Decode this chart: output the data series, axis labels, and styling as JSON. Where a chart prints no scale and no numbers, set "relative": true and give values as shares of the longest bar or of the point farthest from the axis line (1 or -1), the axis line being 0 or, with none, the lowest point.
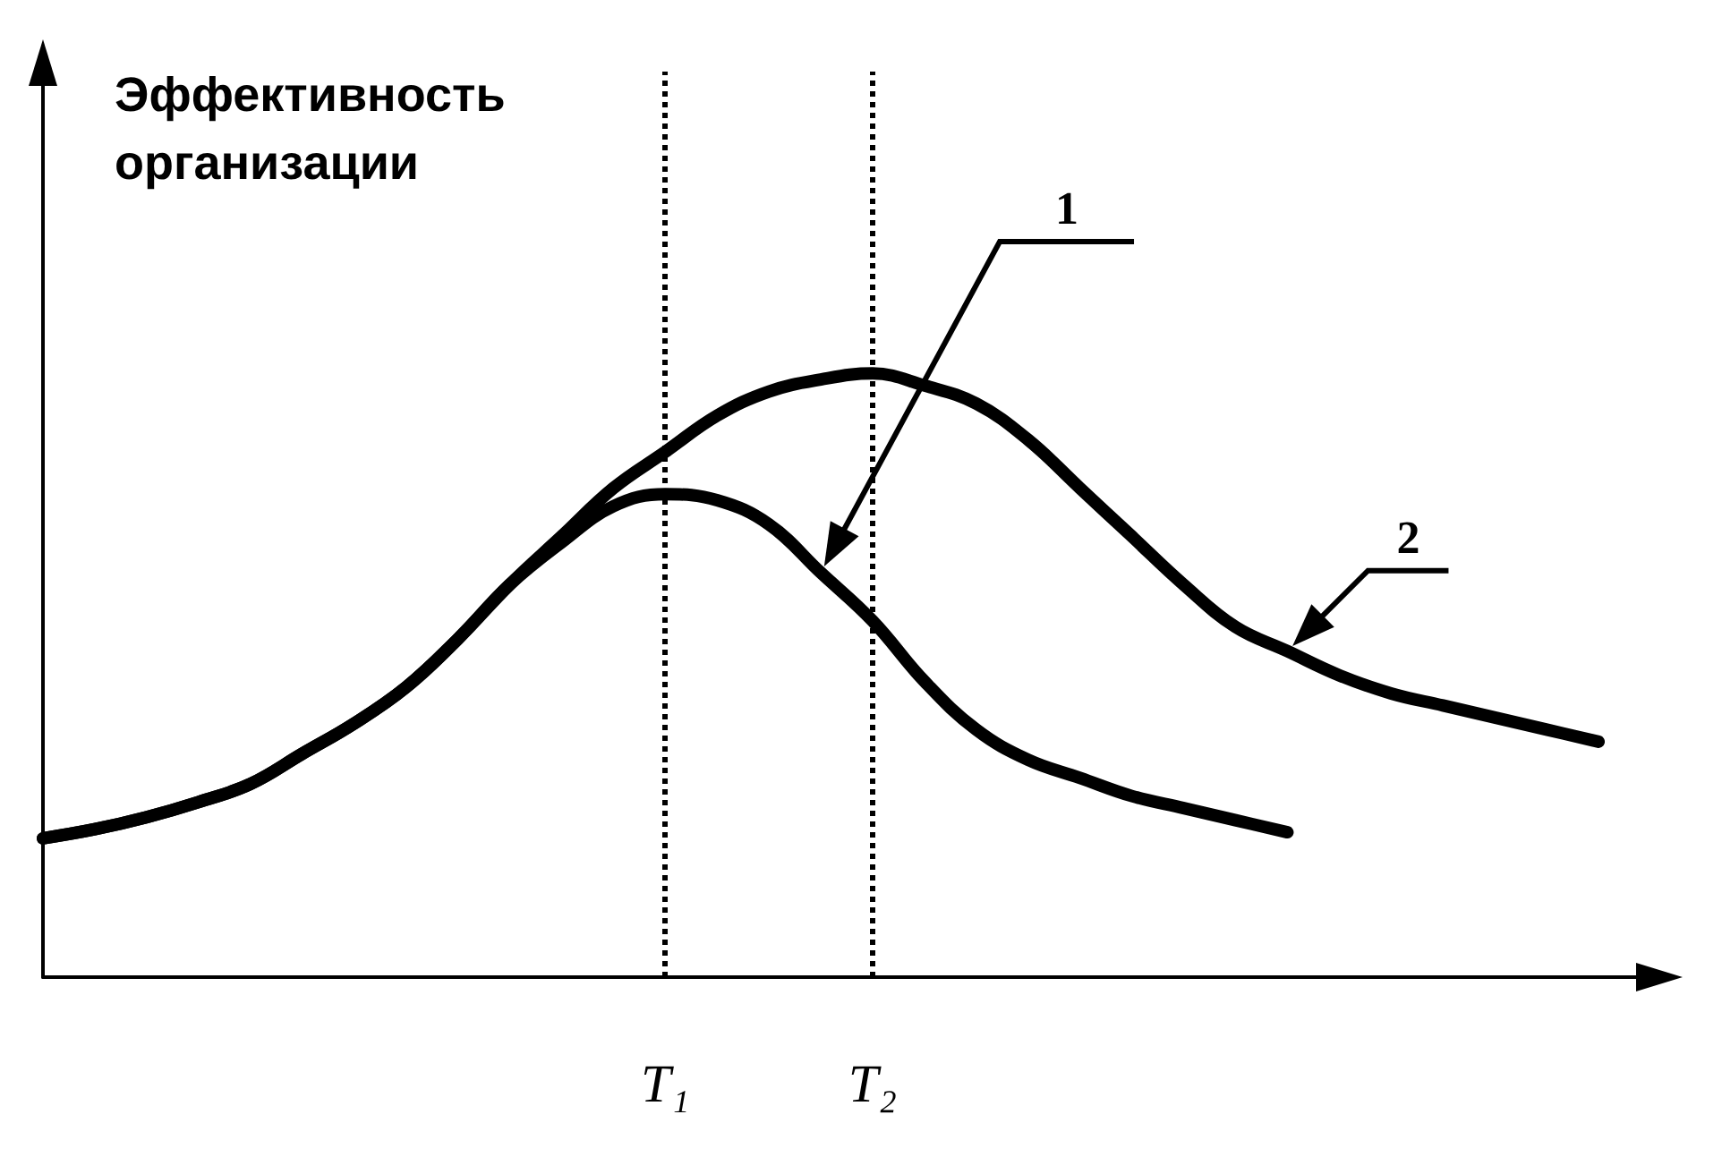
{
  "chart_data": {
    "type": "line",
    "ylabel": "Эффективность организации",
    "relative": true,
    "categories": [
      null,
      null,
      null,
      null,
      null,
      null,
      null,
      null,
      null,
      null,
      null,
      null,
      "T₁",
      null,
      null,
      null,
      "T₂",
      null,
      null,
      null,
      null,
      null,
      null,
      null,
      null,
      null,
      null,
      null,
      null,
      null,
      null,
      null
    ],
    "series": [
      {
        "name": "1",
        "color": "#000000",
        "values": [
          0.23,
          0.245,
          0.265,
          0.29,
          0.32,
          0.37,
          0.42,
          0.48,
          0.56,
          0.65,
          0.72,
          0.78,
          0.8,
          0.79,
          0.75,
          0.67,
          0.59,
          0.49,
          0.41,
          0.36,
          0.33,
          0.3,
          0.28,
          0.26,
          0.24,
          null,
          null,
          null,
          null,
          null,
          null,
          null
        ]
      },
      {
        "name": "2",
        "color": "#000000",
        "values": [
          0.23,
          0.245,
          0.265,
          0.29,
          0.32,
          0.37,
          0.42,
          0.48,
          0.56,
          0.65,
          0.73,
          0.81,
          0.87,
          0.93,
          0.97,
          0.99,
          1,
          0.98,
          0.95,
          0.89,
          0.81,
          0.73,
          0.65,
          0.58,
          0.54,
          0.5,
          0.47,
          0.45,
          0.43,
          0.41,
          0.39,
          null
        ]
      }
    ],
    "ref_lines": [
      {
        "axis": "x",
        "value": "T₁",
        "line_style": "dotted"
      },
      {
        "axis": "x",
        "value": "T₂",
        "line_style": "dotted"
      }
    ],
    "grid": false,
    "legend": false,
    "marker": "none",
    "line_style": "solid"
  }
}
